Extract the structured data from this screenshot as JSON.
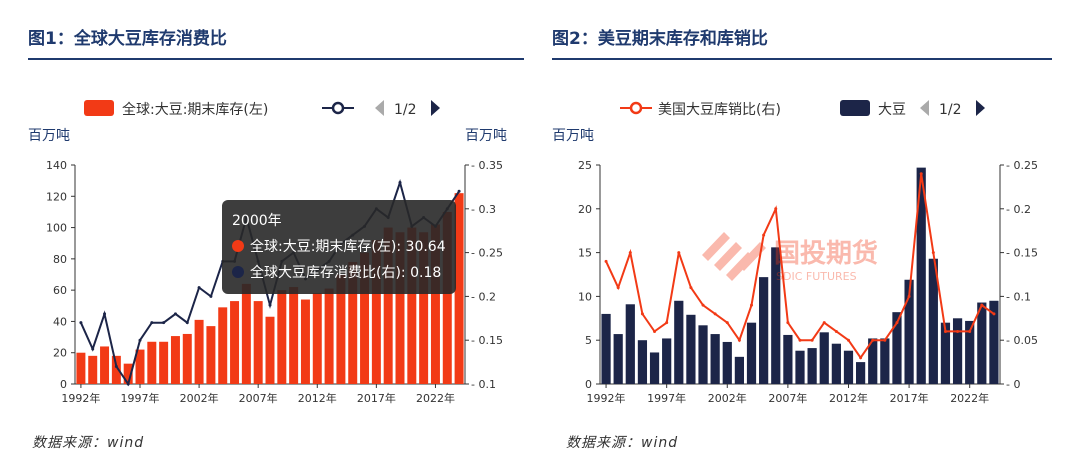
{
  "figures": [
    {
      "title": "图1：全球大豆库存消费比",
      "source": "数据来源：wind",
      "unit_left": "百万吨",
      "unit_right": "百万吨",
      "legend": {
        "bar_label": "全球:大豆:期末库存(左)",
        "page": "1/2"
      },
      "tooltip": {
        "year": "2000年",
        "row1_label": "全球:大豆:期末库存(左):",
        "row1_value": "30.64",
        "row2_label": "全球大豆库存消费比(右):",
        "row2_value": "0.18"
      }
    },
    {
      "title": "图2：美豆期末库存和库销比",
      "source": "数据来源：wind",
      "unit_left": "百万吨",
      "legend": {
        "line_label": "美国大豆库销比(右)",
        "bar_label": "大豆",
        "page": "1/2"
      },
      "watermark": {
        "cn": "国投期货",
        "en": "SDIC FUTURES"
      }
    }
  ],
  "colors": {
    "red": "#f23a16",
    "navy": "#1c2548",
    "title": "#1f3a6e"
  },
  "chart_data": [
    {
      "type": "bar+line",
      "title": "图1：全球大豆库存消费比",
      "categories": [
        "1992",
        "1993",
        "1994",
        "1995",
        "1996",
        "1997",
        "1998",
        "1999",
        "2000",
        "2001",
        "2002",
        "2003",
        "2004",
        "2005",
        "2006",
        "2007",
        "2008",
        "2009",
        "2010",
        "2011",
        "2012",
        "2013",
        "2014",
        "2015",
        "2016",
        "2017",
        "2018",
        "2019",
        "2020",
        "2021",
        "2022",
        "2023",
        "2024"
      ],
      "x_tick_labels": [
        "1992年",
        "1997年",
        "2002年",
        "2007年",
        "2012年",
        "2017年",
        "2022年"
      ],
      "series": [
        {
          "name": "全球:大豆:期末库存(左)",
          "axis": "left",
          "kind": "bar",
          "values": [
            20,
            18,
            24,
            18,
            13,
            22,
            27,
            27,
            30.64,
            32,
            41,
            37,
            49,
            53,
            64,
            53,
            43,
            60,
            62,
            54,
            58,
            61,
            70,
            78,
            84,
            92,
            100,
            97,
            100,
            97,
            102,
            110,
            122
          ]
        },
        {
          "name": "全球大豆库存消费比(右)",
          "axis": "right",
          "kind": "line",
          "values": [
            0.17,
            0.14,
            0.18,
            0.12,
            0.1,
            0.15,
            0.17,
            0.17,
            0.18,
            0.17,
            0.21,
            0.2,
            0.24,
            0.24,
            0.29,
            0.24,
            0.19,
            0.24,
            0.25,
            0.22,
            0.23,
            0.24,
            0.26,
            0.27,
            0.28,
            0.3,
            0.29,
            0.33,
            0.28,
            0.29,
            0.28,
            0.3,
            0.32
          ]
        }
      ],
      "y_left": {
        "min": 0,
        "max": 140,
        "ticks": [
          0,
          20,
          40,
          60,
          80,
          100,
          120,
          140
        ]
      },
      "y_right": {
        "min": 0.1,
        "max": 0.35,
        "ticks": [
          0.1,
          0.15,
          0.2,
          0.25,
          0.3,
          0.35
        ]
      }
    },
    {
      "type": "bar+line",
      "title": "图2：美豆期末库存和库销比",
      "categories": [
        "1992",
        "1993",
        "1994",
        "1995",
        "1996",
        "1997",
        "1998",
        "1999",
        "2000",
        "2001",
        "2002",
        "2003",
        "2004",
        "2005",
        "2006",
        "2007",
        "2008",
        "2009",
        "2010",
        "2011",
        "2012",
        "2013",
        "2014",
        "2015",
        "2016",
        "2017",
        "2018",
        "2019",
        "2020",
        "2021",
        "2022",
        "2023",
        "2024"
      ],
      "x_tick_labels": [
        "1992年",
        "1997年",
        "2002年",
        "2007年",
        "2012年",
        "2017年",
        "2022年"
      ],
      "series": [
        {
          "name": "大豆",
          "axis": "left",
          "kind": "bar",
          "values": [
            8,
            5.7,
            9.1,
            5,
            3.6,
            5.2,
            9.5,
            7.9,
            6.7,
            5.7,
            4.8,
            3.1,
            7,
            12.2,
            15.6,
            5.6,
            3.8,
            4.1,
            5.9,
            4.6,
            3.8,
            2.5,
            5.2,
            5.2,
            8.2,
            11.9,
            24.7,
            14.3,
            7,
            7.5,
            7.2,
            9.3,
            9.5
          ]
        },
        {
          "name": "美国大豆库销比(右)",
          "axis": "right",
          "kind": "line",
          "values": [
            0.14,
            0.11,
            0.15,
            0.08,
            0.06,
            0.07,
            0.15,
            0.11,
            0.09,
            0.08,
            0.07,
            0.05,
            0.09,
            0.17,
            0.2,
            0.07,
            0.05,
            0.05,
            0.07,
            0.06,
            0.05,
            0.03,
            0.05,
            0.05,
            0.07,
            0.1,
            0.24,
            0.15,
            0.06,
            0.06,
            0.06,
            0.09,
            0.08
          ]
        }
      ],
      "y_left": {
        "min": 0,
        "max": 25,
        "ticks": [
          0,
          5,
          10,
          15,
          20,
          25
        ]
      },
      "y_right": {
        "min": 0,
        "max": 0.25,
        "ticks": [
          0,
          0.05,
          0.1,
          0.15,
          0.2,
          0.25
        ]
      }
    }
  ]
}
